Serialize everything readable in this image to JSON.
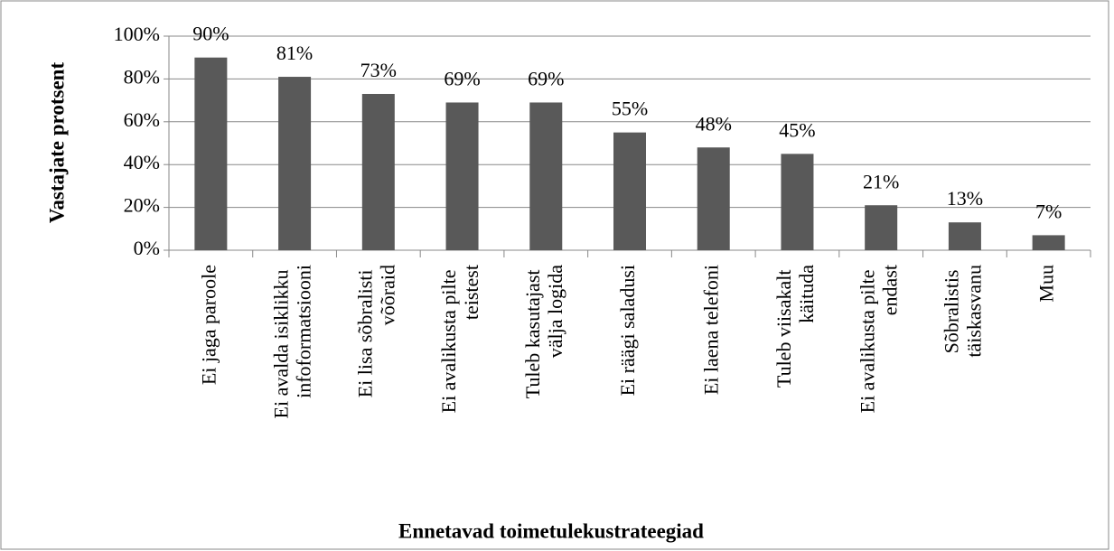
{
  "chart_data": {
    "type": "bar",
    "categories": [
      "Ei jaga paroole",
      "Ei avalda isiklikku infoformatsiooni",
      "Ei lisa sõbralisti võõraid",
      "Ei avalikusta pilte teistest",
      "Tuleb kasutajast välja logida",
      "Ei räägi saladusi",
      "Ei laena telefoni",
      "Tuleb viisakalt käituda",
      "Ei avalikusta pilte endast",
      "Sõbralistis täiskasvanu",
      "Muu"
    ],
    "values": [
      90,
      81,
      73,
      69,
      69,
      55,
      48,
      45,
      21,
      13,
      7
    ],
    "value_labels": [
      "90%",
      "81%",
      "73%",
      "69%",
      "69%",
      "55%",
      "48%",
      "45%",
      "21%",
      "13%",
      "7%"
    ],
    "color": "#595959",
    "ylim": [
      0,
      100
    ],
    "yticks": [
      {
        "value": 0,
        "label": "0%"
      },
      {
        "value": 20,
        "label": "20%"
      },
      {
        "value": 40,
        "label": "40%"
      },
      {
        "value": 60,
        "label": "60%"
      },
      {
        "value": 80,
        "label": "80%"
      },
      {
        "value": 100,
        "label": "100%"
      }
    ],
    "grid": true,
    "ylabel": "Vastajate protsent",
    "xlabel": "Ennetavad toimetulekustrateegiad"
  }
}
